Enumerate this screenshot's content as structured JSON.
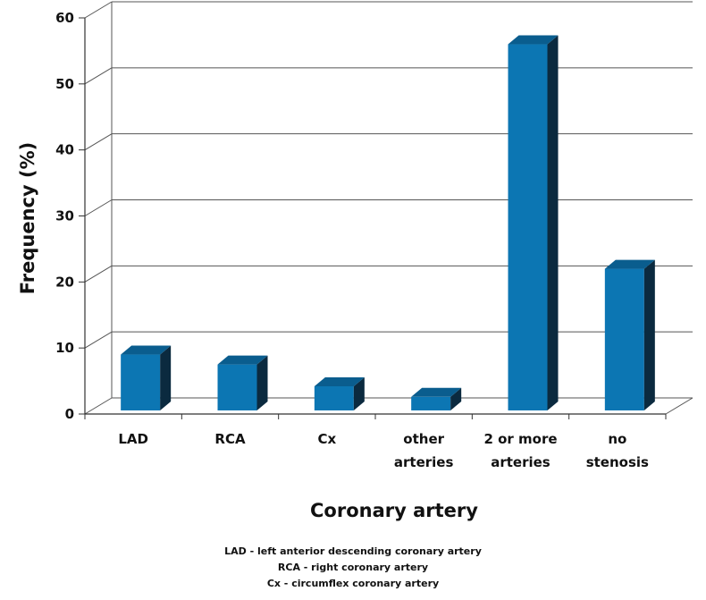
{
  "chart_data": {
    "type": "bar",
    "categories": [
      [
        "LAD"
      ],
      [
        "RCA"
      ],
      [
        "Cx"
      ],
      [
        "other",
        "arteries"
      ],
      [
        "2 or more",
        "arteries"
      ],
      [
        "no",
        "stenosis"
      ]
    ],
    "values": [
      9,
      7.5,
      4.2,
      2.6,
      56,
      22
    ],
    "xlabel": "Coronary artery",
    "ylabel": "Frequency (%)",
    "ylim": [
      0,
      60
    ],
    "yticks": [
      0,
      10,
      20,
      30,
      40,
      50,
      60
    ],
    "grid": true,
    "bar_colors": {
      "front": "#0c76b3",
      "top": "#0a5d8e",
      "side": "#0b2a3f"
    }
  },
  "legend_notes": [
    "LAD  - left anterior descending coronary artery",
    "RCA - right coronary artery",
    "Cx - circumflex coronary artery"
  ]
}
